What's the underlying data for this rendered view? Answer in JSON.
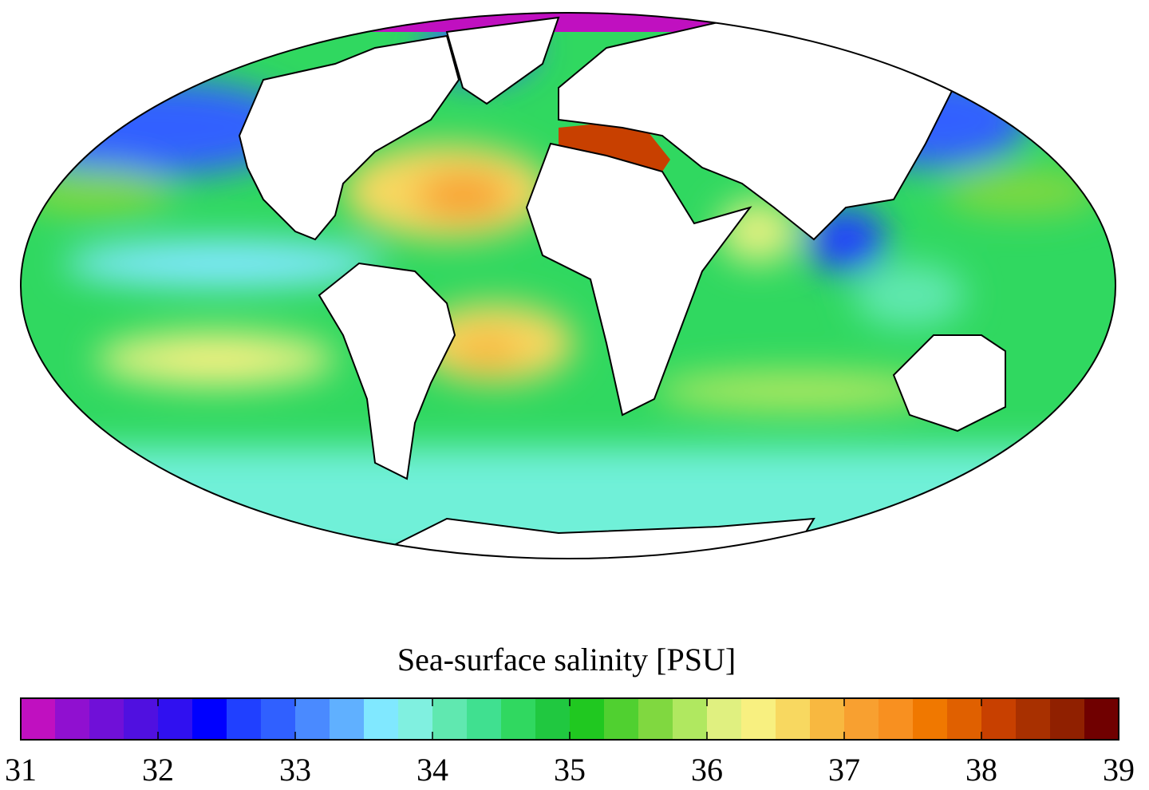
{
  "title": "Sea-surface salinity [PSU]",
  "colorbar": {
    "range": [
      31,
      39
    ],
    "ticks": [
      31,
      32,
      33,
      34,
      35,
      36,
      37,
      38,
      39
    ],
    "colors": [
      "#c010c0",
      "#9010d0",
      "#7010d8",
      "#5010e0",
      "#3010f0",
      "#0000ff",
      "#2040ff",
      "#3060ff",
      "#4a8aff",
      "#60b0ff",
      "#80e8ff",
      "#80f0e0",
      "#60e8b0",
      "#40e090",
      "#30d860",
      "#20c840",
      "#20c820",
      "#50d030",
      "#80d840",
      "#b0e860",
      "#e0f080",
      "#f8f080",
      "#f8d860",
      "#f8b840",
      "#f8a030",
      "#f89020",
      "#f07800",
      "#e06000",
      "#c84000",
      "#a83000",
      "#902000",
      "#700000"
    ]
  }
}
